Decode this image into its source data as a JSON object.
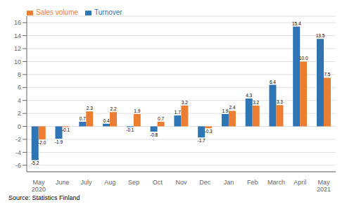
{
  "chart_data": {
    "type": "bar",
    "categories": [
      "May\n2020",
      "June",
      "July",
      "Aug",
      "Sep",
      "Oct",
      "Nov",
      "Dec",
      "Jan",
      "Feb",
      "March",
      "April",
      "May\n2021"
    ],
    "series": [
      {
        "name": "Turnover",
        "color": "#2e75b6",
        "values": [
          -5.2,
          -1.9,
          0.7,
          0.4,
          -0.1,
          -0.8,
          1.7,
          -1.7,
          1.9,
          4.3,
          6.4,
          15.4,
          13.5
        ]
      },
      {
        "name": "Sales volume",
        "color": "#ed7d31",
        "values": [
          -2.0,
          -0.1,
          2.3,
          2.2,
          1.9,
          0.7,
          3.2,
          -0.3,
          2.4,
          3.2,
          3.3,
          10.0,
          7.5
        ],
        "value_labels": [
          "-2.0",
          "-0.1",
          "2.3",
          "2.2",
          "1.9",
          "0.7",
          "3.2",
          "-0.3",
          "2.4",
          "3.2",
          "3.3",
          "10.0",
          "7.5"
        ]
      }
    ],
    "ylim": [
      -7,
      17
    ],
    "yticks": [
      -6,
      -4,
      -2,
      0,
      2,
      4,
      6,
      8,
      10,
      12,
      14,
      16
    ],
    "grid": true,
    "legend": "upper left",
    "data_labels": true,
    "annotations": [
      "Source: Statistics Finland"
    ]
  }
}
